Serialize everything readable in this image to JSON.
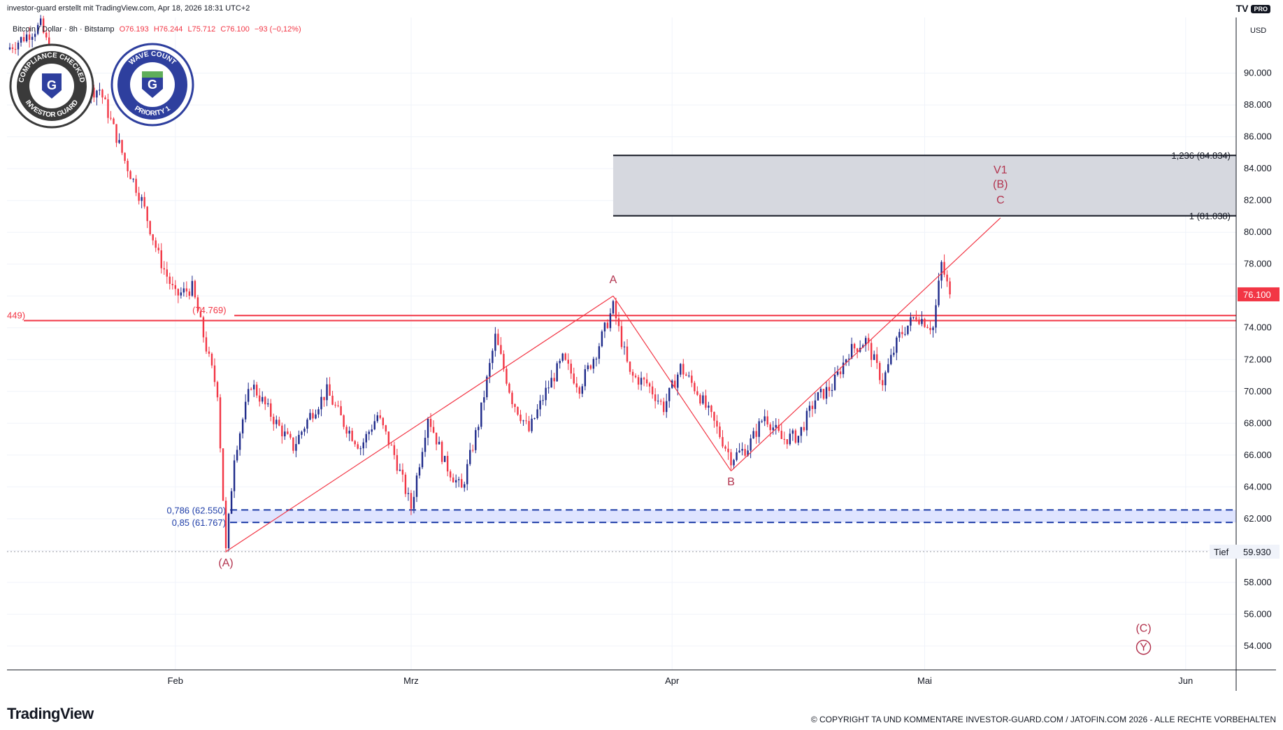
{
  "header": {
    "creator": "investor-guard erstellt mit TradingView.com, Apr 18, 2026 18:31 UTC+2",
    "brand": "TV",
    "brand_badge": "PRO"
  },
  "legend": {
    "symbol": "Bitcoin / Dollar · 8h · Bitstamp",
    "open": "O76.193",
    "high": "H76.244",
    "low": "L75.712",
    "close": "C76.100",
    "change": "−93 (−0,12%)"
  },
  "badges": {
    "left_top": "COMPLIANCE CHECKED",
    "left_bottom": "INVESTOR GUARD",
    "right_top": "WAVE COUNT",
    "right_bottom": "PRIORITY 1"
  },
  "chart_data": {
    "type": "candlestick",
    "currency": "USD",
    "ylim": [
      52500,
      93500
    ],
    "y_ticks": [
      "54.000",
      "56.000",
      "58.000",
      "60.000",
      "62.000",
      "64.000",
      "66.000",
      "68.000",
      "70.000",
      "72.000",
      "74.000",
      "76.000",
      "78.000",
      "80.000",
      "82.000",
      "84.000",
      "86.000",
      "88.000",
      "90.000"
    ],
    "y_tick_values": [
      54000,
      56000,
      58000,
      60000,
      62000,
      64000,
      66000,
      68000,
      70000,
      72000,
      74000,
      76000,
      78000,
      80000,
      82000,
      84000,
      86000,
      88000,
      90000
    ],
    "x_ticks": [
      "Feb",
      "Mrz",
      "Apr",
      "Mai",
      "Jun"
    ],
    "x_tick_days": [
      31,
      59,
      90,
      120,
      151
    ],
    "xlim_days": [
      11,
      157
    ],
    "last_price": "76.100",
    "last_price_value": 76100,
    "low_label": "Tief",
    "low_value_label": "59.930",
    "low_value": 59930,
    "keypoints": [
      {
        "day": 11,
        "price": 91500
      },
      {
        "day": 15,
        "price": 93000
      },
      {
        "day": 18,
        "price": 88500
      },
      {
        "day": 22,
        "price": 89000
      },
      {
        "day": 25,
        "price": 84500
      },
      {
        "day": 27,
        "price": 82000
      },
      {
        "day": 29,
        "price": 78500
      },
      {
        "day": 31,
        "price": 76000
      },
      {
        "day": 33,
        "price": 76500
      },
      {
        "day": 35,
        "price": 72000
      },
      {
        "day": 36,
        "price": 70000
      },
      {
        "day": 37,
        "price": 59930
      },
      {
        "day": 38,
        "price": 66000
      },
      {
        "day": 40,
        "price": 70500
      },
      {
        "day": 43,
        "price": 68000
      },
      {
        "day": 45,
        "price": 66500
      },
      {
        "day": 47,
        "price": 68500
      },
      {
        "day": 49,
        "price": 70000
      },
      {
        "day": 51,
        "price": 68000
      },
      {
        "day": 53,
        "price": 66500
      },
      {
        "day": 55,
        "price": 68500
      },
      {
        "day": 57,
        "price": 66000
      },
      {
        "day": 59,
        "price": 62700
      },
      {
        "day": 61,
        "price": 68500
      },
      {
        "day": 63,
        "price": 65500
      },
      {
        "day": 65,
        "price": 63800
      },
      {
        "day": 67,
        "price": 68000
      },
      {
        "day": 69,
        "price": 73400
      },
      {
        "day": 71,
        "price": 69500
      },
      {
        "day": 73,
        "price": 67500
      },
      {
        "day": 75,
        "price": 70000
      },
      {
        "day": 77,
        "price": 72000
      },
      {
        "day": 79,
        "price": 70300
      },
      {
        "day": 81,
        "price": 72500
      },
      {
        "day": 83,
        "price": 75300
      },
      {
        "day": 85,
        "price": 71000
      },
      {
        "day": 87,
        "price": 70500
      },
      {
        "day": 89,
        "price": 69000
      },
      {
        "day": 91,
        "price": 71500
      },
      {
        "day": 93,
        "price": 70000
      },
      {
        "day": 95,
        "price": 68000
      },
      {
        "day": 97,
        "price": 65800
      },
      {
        "day": 99,
        "price": 66500
      },
      {
        "day": 101,
        "price": 68500
      },
      {
        "day": 103,
        "price": 67000
      },
      {
        "day": 105,
        "price": 67200
      },
      {
        "day": 107,
        "price": 69500
      },
      {
        "day": 109,
        "price": 70300
      },
      {
        "day": 111,
        "price": 72500
      },
      {
        "day": 113,
        "price": 73200
      },
      {
        "day": 115,
        "price": 70600
      },
      {
        "day": 117,
        "price": 73500
      },
      {
        "day": 119,
        "price": 74800
      },
      {
        "day": 121,
        "price": 74000
      },
      {
        "day": 122,
        "price": 78000
      },
      {
        "day": 123,
        "price": 76100
      }
    ],
    "fib_zones": [
      {
        "label_top": "1,236 (84.834)",
        "label_bottom": "1 (81.038)",
        "top": 84834,
        "bottom": 81038,
        "color": "#d1d4dc",
        "edge": "#131722"
      },
      {
        "label_top": "0,786 (62.550)",
        "label_bottom": "0,85 (61.767)",
        "top": 62550,
        "bottom": 61767,
        "color": "#dbe1ff",
        "edge": "#1f3ea8"
      }
    ],
    "h_lines": [
      {
        "price": 74769,
        "label": "(74.769)",
        "color": "#f23645",
        "start_day": 38
      },
      {
        "price": 74449,
        "label": "449)",
        "color": "#f23645",
        "start_day": 13
      }
    ],
    "wave_lines": [
      {
        "from": {
          "day": 37,
          "price": 59930
        },
        "to": {
          "day": 83,
          "price": 76000
        }
      },
      {
        "from": {
          "day": 83,
          "price": 76000
        },
        "to": {
          "day": 97,
          "price": 65000
        }
      },
      {
        "from": {
          "day": 97,
          "price": 65000
        },
        "to": {
          "day": 129,
          "price": 80900
        }
      }
    ],
    "wave_labels": [
      {
        "text": "(A)",
        "day": 37,
        "price": 59000,
        "color": "#b2334e"
      },
      {
        "text": "A",
        "day": 83,
        "price": 76800,
        "color": "#b2334e"
      },
      {
        "text": "B",
        "day": 97,
        "price": 64100,
        "color": "#b2334e"
      },
      {
        "text": "C",
        "day": 129,
        "price": 81800,
        "color": "#b2334e"
      },
      {
        "text": "(B)",
        "day": 129,
        "price": 82800,
        "color": "#b2334e"
      },
      {
        "text": "V1",
        "day": 129,
        "price": 83700,
        "color": "#b2334e"
      },
      {
        "text": "(C)",
        "day": 146,
        "price": 54900,
        "color": "#b2334e"
      },
      {
        "text": "Y",
        "day": 146,
        "price": 53700,
        "color": "#b2334e",
        "circled": true
      }
    ],
    "colors": {
      "up": "#1e2a8a",
      "down": "#f23645",
      "grid": "#f0f3fa",
      "wave": "#f23645"
    }
  },
  "footer": {
    "brand": "TradingView",
    "copyright": "© COPYRIGHT TA UND KOMMENTARE INVESTOR-GUARD.COM / JATOFIN.COM 2026 - ALLE RECHTE VORBEHALTEN"
  }
}
